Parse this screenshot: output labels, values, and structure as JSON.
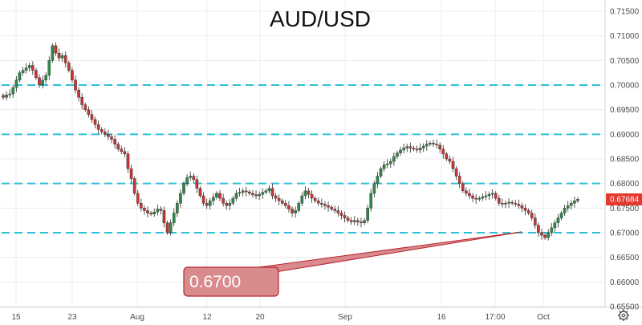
{
  "colors": {
    "up": "#2f8a4a",
    "down": "#c73534",
    "level_line": "#2ec0d6",
    "grid": "#ececec",
    "callout_fill": "#d98a8c",
    "callout_stroke": "#b7262f",
    "price_tag": "#e5382f",
    "axis_text": "#4a4a4a"
  },
  "icons": {
    "settings": "gear-icon"
  },
  "chart_data": {
    "type": "candlestick",
    "title": "AUD/USD",
    "x_ticks": [
      "15",
      "23",
      "Aug",
      "12",
      "20",
      "Sep",
      "16",
      "17:00",
      "Oct"
    ],
    "y_ticks": [
      "0.71500",
      "0.71000",
      "0.70500",
      "0.70000",
      "0.69500",
      "0.69000",
      "0.68500",
      "0.68000",
      "0.67500",
      "0.67000",
      "0.66500",
      "0.66000",
      "0.65500"
    ],
    "ylim": [
      0.655,
      0.715
    ],
    "horizontal_levels": [
      0.7,
      0.69,
      0.68,
      0.67
    ],
    "last_price": "0.67684",
    "last_price_value": 0.67684,
    "callout": {
      "label": "0.6700",
      "value": 0.67
    },
    "grid": true,
    "series_close": [
      0.6975,
      0.698,
      0.6982,
      0.6995,
      0.701,
      0.7025,
      0.703,
      0.7035,
      0.704,
      0.703,
      0.7015,
      0.7,
      0.701,
      0.702,
      0.705,
      0.708,
      0.7065,
      0.7055,
      0.706,
      0.7045,
      0.703,
      0.701,
      0.699,
      0.6975,
      0.696,
      0.695,
      0.694,
      0.693,
      0.692,
      0.691,
      0.6905,
      0.69,
      0.6895,
      0.689,
      0.688,
      0.687,
      0.6865,
      0.686,
      0.683,
      0.681,
      0.678,
      0.676,
      0.675,
      0.6745,
      0.674,
      0.6738,
      0.6742,
      0.6748,
      0.6745,
      0.672,
      0.67,
      0.672,
      0.674,
      0.676,
      0.678,
      0.68,
      0.6812,
      0.6815,
      0.6808,
      0.679,
      0.6775,
      0.676,
      0.6755,
      0.6765,
      0.6772,
      0.678,
      0.677,
      0.676,
      0.6755,
      0.676,
      0.677,
      0.678,
      0.6782,
      0.6785,
      0.6783,
      0.678,
      0.6777,
      0.6775,
      0.6778,
      0.6782,
      0.6785,
      0.679,
      0.6775,
      0.677,
      0.6765,
      0.676,
      0.6755,
      0.6748,
      0.674,
      0.6745,
      0.676,
      0.6775,
      0.6785,
      0.6778,
      0.677,
      0.6765,
      0.676,
      0.6758,
      0.6755,
      0.6752,
      0.6748,
      0.6745,
      0.674,
      0.6735,
      0.673,
      0.6725,
      0.6722,
      0.6725,
      0.6722,
      0.672,
      0.6725,
      0.675,
      0.678,
      0.68,
      0.6815,
      0.683,
      0.6838,
      0.684,
      0.6845,
      0.6855,
      0.6862,
      0.6868,
      0.6872,
      0.6875,
      0.6872,
      0.687,
      0.6868,
      0.6872,
      0.6876,
      0.688,
      0.6882,
      0.688,
      0.6878,
      0.687,
      0.686,
      0.685,
      0.6845,
      0.683,
      0.6815,
      0.68,
      0.6785,
      0.678,
      0.6775,
      0.677,
      0.6768,
      0.677,
      0.6773,
      0.6775,
      0.6778,
      0.678,
      0.677,
      0.676,
      0.6758,
      0.676,
      0.6762,
      0.676,
      0.6758,
      0.6755,
      0.675,
      0.6745,
      0.674,
      0.673,
      0.6715,
      0.67,
      0.6695,
      0.669,
      0.67,
      0.671,
      0.672,
      0.673,
      0.674,
      0.675,
      0.6755,
      0.676,
      0.6765,
      0.6768
    ]
  }
}
